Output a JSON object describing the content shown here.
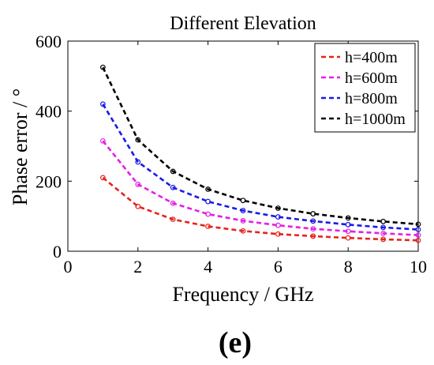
{
  "chart_data": {
    "type": "line",
    "title": "Different Elevation",
    "xlabel": "Frequency / GHz",
    "ylabel": "Phase error / °",
    "xlim": [
      0,
      10
    ],
    "ylim": [
      0,
      600
    ],
    "xticks": [
      "0",
      "2",
      "4",
      "6",
      "8",
      "10"
    ],
    "yticks": [
      "0",
      "200",
      "400",
      "600"
    ],
    "grid": false,
    "legend_position": "top-right",
    "x": [
      1,
      2,
      3,
      4,
      5,
      6,
      7,
      8,
      9,
      10
    ],
    "series": [
      {
        "name": "h=400m",
        "color": "#e8221c",
        "values": [
          210,
          128,
          91,
          71,
          58,
          49,
          43,
          38,
          34,
          31
        ]
      },
      {
        "name": "h=600m",
        "color": "#e51ee5",
        "values": [
          315,
          191,
          137,
          106,
          87,
          74,
          64,
          57,
          51,
          46
        ]
      },
      {
        "name": "h=800m",
        "color": "#1a1ae8",
        "values": [
          420,
          255,
          182,
          142,
          116,
          98,
          86,
          76,
          68,
          62
        ]
      },
      {
        "name": "h=1000m",
        "color": "#000000",
        "values": [
          525,
          318,
          228,
          177,
          145,
          123,
          107,
          95,
          85,
          77
        ]
      }
    ]
  },
  "caption": "(e)"
}
